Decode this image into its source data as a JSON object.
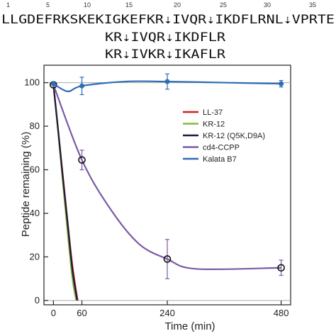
{
  "sequence": {
    "numbers": [
      "1",
      "5",
      "10",
      "15",
      "20",
      "25",
      "30",
      "35"
    ],
    "main": "LLGDEFRKSKEKIGKEFKR⇣IVQR⇣IKDFLRNL⇣VPRTE",
    "variant1": "KR⇣IVQR⇣IKDFLR",
    "variant2": "KR⇣IVKR⇣IKAFLR"
  },
  "chart_data": {
    "type": "line",
    "title": "",
    "xlabel": "Time (min)",
    "ylabel": "Peptide remaining (%)",
    "xlim": [
      -20,
      500
    ],
    "ylim": [
      -2,
      108
    ],
    "xticks": [
      0,
      60,
      240,
      480
    ],
    "yticks": [
      0,
      20,
      40,
      60,
      80,
      100
    ],
    "legend_position": "center-right",
    "series": [
      {
        "name": "LL-37",
        "color": "#d21f2a",
        "x": [
          0,
          10,
          20,
          30,
          40,
          51
        ],
        "y": [
          99,
          78,
          57,
          36,
          16,
          0
        ],
        "points": false
      },
      {
        "name": "KR-12",
        "color": "#86b83a",
        "x": [
          0,
          10,
          20,
          30,
          40,
          48
        ],
        "y": [
          99,
          77,
          54,
          31,
          10,
          0
        ],
        "points": false
      },
      {
        "name": "KR-12 (Q5K,D9A)",
        "color": "#1a1a3a",
        "x": [
          0,
          10,
          20,
          30,
          40,
          50
        ],
        "y": [
          99,
          78,
          56,
          35,
          14,
          0
        ],
        "points": false
      },
      {
        "name": "cd4-CCPP",
        "color": "#7b5aa6",
        "x": [
          0,
          60,
          120,
          180,
          240,
          300,
          480
        ],
        "y": [
          99,
          64.5,
          42,
          26,
          19,
          14.5,
          15
        ],
        "err": [
          0,
          4.5,
          0,
          0,
          9,
          0,
          3.5
        ],
        "markers": [
          0,
          60,
          240,
          480
        ],
        "points": true
      },
      {
        "name": "Kalata B7",
        "color": "#2f6db5",
        "x": [
          0,
          30,
          60,
          150,
          240,
          360,
          480
        ],
        "y": [
          99.5,
          96,
          98.5,
          100.5,
          100.5,
          100,
          99.5
        ],
        "err": [
          0,
          0,
          4,
          0,
          3.5,
          0,
          1.5
        ],
        "markers": [
          0,
          60,
          240,
          480
        ],
        "points": true
      }
    ]
  }
}
